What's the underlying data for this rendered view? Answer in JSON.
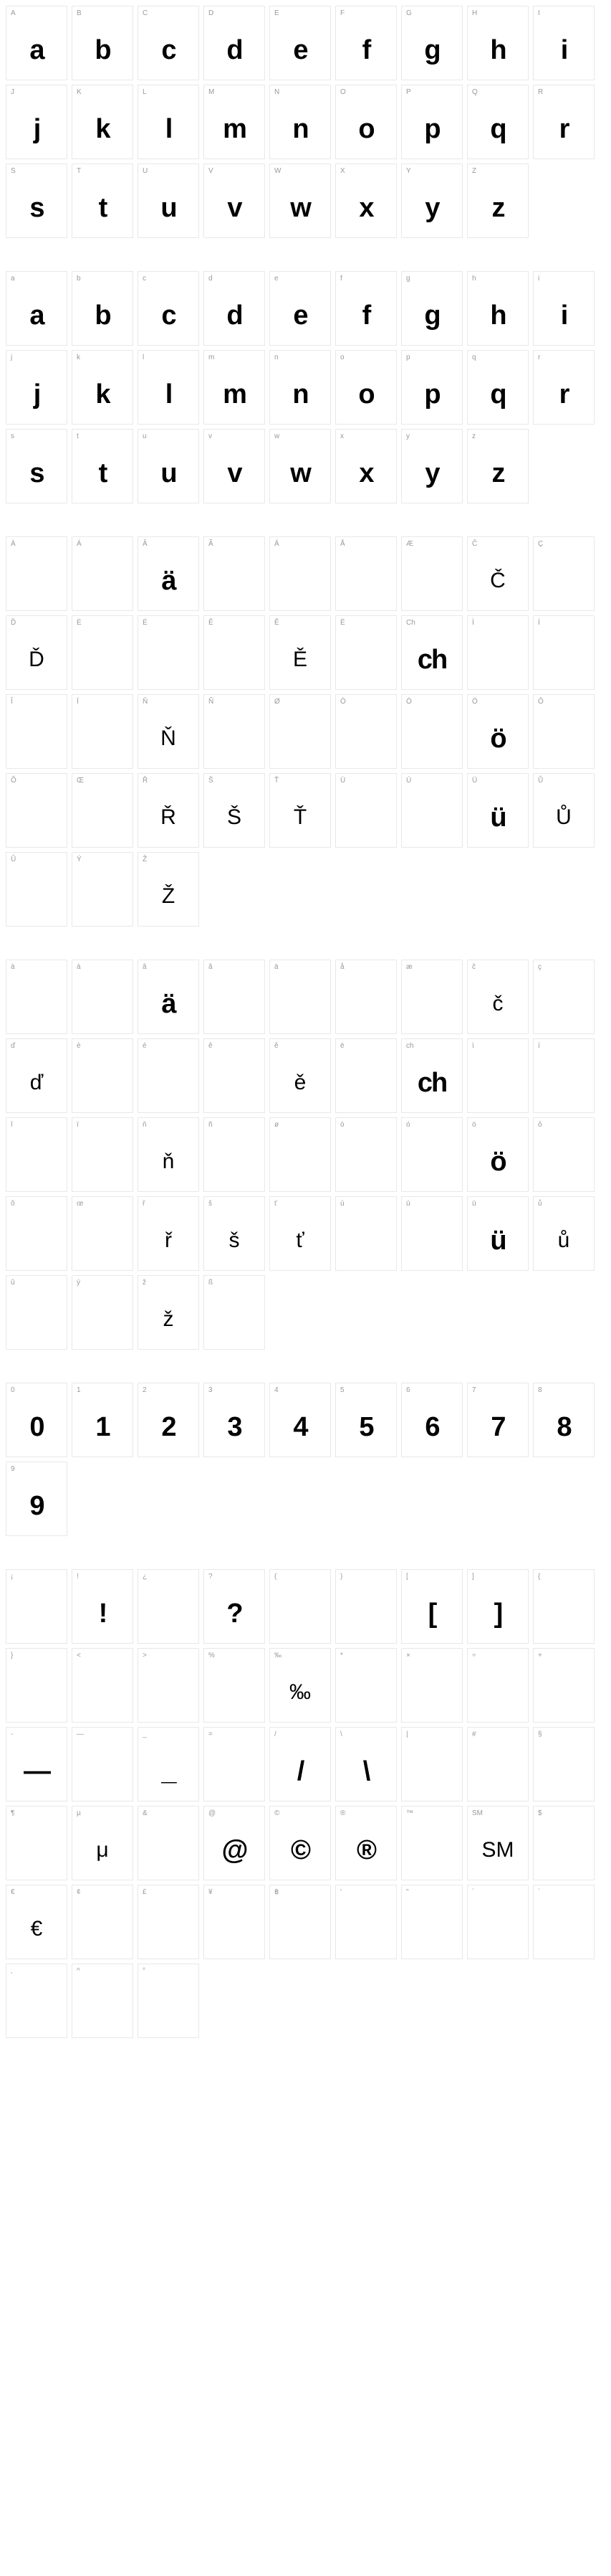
{
  "groups": [
    {
      "cells": [
        {
          "label": "A",
          "glyph": "a",
          "style": "bold"
        },
        {
          "label": "B",
          "glyph": "b",
          "style": "bold"
        },
        {
          "label": "C",
          "glyph": "c",
          "style": "bold"
        },
        {
          "label": "D",
          "glyph": "d",
          "style": "bold"
        },
        {
          "label": "E",
          "glyph": "e",
          "style": "bold"
        },
        {
          "label": "F",
          "glyph": "f",
          "style": "bold"
        },
        {
          "label": "G",
          "glyph": "g",
          "style": "bold"
        },
        {
          "label": "H",
          "glyph": "h",
          "style": "bold"
        },
        {
          "label": "I",
          "glyph": "i",
          "style": "bold"
        },
        {
          "label": "J",
          "glyph": "j",
          "style": "bold"
        },
        {
          "label": "K",
          "glyph": "k",
          "style": "bold"
        },
        {
          "label": "L",
          "glyph": "l",
          "style": "bold"
        },
        {
          "label": "M",
          "glyph": "m",
          "style": "bold"
        },
        {
          "label": "N",
          "glyph": "n",
          "style": "bold"
        },
        {
          "label": "O",
          "glyph": "o",
          "style": "bold"
        },
        {
          "label": "P",
          "glyph": "p",
          "style": "bold"
        },
        {
          "label": "Q",
          "glyph": "q",
          "style": "bold"
        },
        {
          "label": "R",
          "glyph": "r",
          "style": "bold"
        },
        {
          "label": "S",
          "glyph": "s",
          "style": "bold"
        },
        {
          "label": "T",
          "glyph": "t",
          "style": "bold"
        },
        {
          "label": "U",
          "glyph": "u",
          "style": "bold"
        },
        {
          "label": "V",
          "glyph": "v",
          "style": "bold"
        },
        {
          "label": "W",
          "glyph": "w",
          "style": "bold"
        },
        {
          "label": "X",
          "glyph": "x",
          "style": "bold"
        },
        {
          "label": "Y",
          "glyph": "y",
          "style": "bold"
        },
        {
          "label": "Z",
          "glyph": "z",
          "style": "bold"
        }
      ]
    },
    {
      "cells": [
        {
          "label": "a",
          "glyph": "a",
          "style": "bold"
        },
        {
          "label": "b",
          "glyph": "b",
          "style": "bold"
        },
        {
          "label": "c",
          "glyph": "c",
          "style": "bold"
        },
        {
          "label": "d",
          "glyph": "d",
          "style": "bold"
        },
        {
          "label": "e",
          "glyph": "e",
          "style": "bold"
        },
        {
          "label": "f",
          "glyph": "f",
          "style": "bold"
        },
        {
          "label": "g",
          "glyph": "g",
          "style": "bold"
        },
        {
          "label": "h",
          "glyph": "h",
          "style": "bold"
        },
        {
          "label": "i",
          "glyph": "i",
          "style": "bold"
        },
        {
          "label": "j",
          "glyph": "j",
          "style": "bold"
        },
        {
          "label": "k",
          "glyph": "k",
          "style": "bold"
        },
        {
          "label": "l",
          "glyph": "l",
          "style": "bold"
        },
        {
          "label": "m",
          "glyph": "m",
          "style": "bold"
        },
        {
          "label": "n",
          "glyph": "n",
          "style": "bold"
        },
        {
          "label": "o",
          "glyph": "o",
          "style": "bold"
        },
        {
          "label": "p",
          "glyph": "p",
          "style": "bold"
        },
        {
          "label": "q",
          "glyph": "q",
          "style": "bold"
        },
        {
          "label": "r",
          "glyph": "r",
          "style": "bold"
        },
        {
          "label": "s",
          "glyph": "s",
          "style": "bold"
        },
        {
          "label": "t",
          "glyph": "t",
          "style": "bold"
        },
        {
          "label": "u",
          "glyph": "u",
          "style": "bold"
        },
        {
          "label": "v",
          "glyph": "v",
          "style": "bold"
        },
        {
          "label": "w",
          "glyph": "w",
          "style": "bold"
        },
        {
          "label": "x",
          "glyph": "x",
          "style": "bold"
        },
        {
          "label": "y",
          "glyph": "y",
          "style": "bold"
        },
        {
          "label": "z",
          "glyph": "z",
          "style": "bold"
        }
      ]
    },
    {
      "cells": [
        {
          "label": "À",
          "glyph": "",
          "style": "empty"
        },
        {
          "label": "Á",
          "glyph": "",
          "style": "empty"
        },
        {
          "label": "Â",
          "glyph": "ä",
          "style": "bold"
        },
        {
          "label": "Ã",
          "glyph": "",
          "style": "empty"
        },
        {
          "label": "Ä",
          "glyph": "",
          "style": "empty"
        },
        {
          "label": "Å",
          "glyph": "",
          "style": "empty"
        },
        {
          "label": "Æ",
          "glyph": "",
          "style": "empty"
        },
        {
          "label": "Č",
          "glyph": "Č",
          "style": "fb"
        },
        {
          "label": "Ç",
          "glyph": "",
          "style": "empty"
        },
        {
          "label": "Ď",
          "glyph": "Ď",
          "style": "fb"
        },
        {
          "label": "È",
          "glyph": "",
          "style": "empty"
        },
        {
          "label": "É",
          "glyph": "",
          "style": "empty"
        },
        {
          "label": "Ê",
          "glyph": "",
          "style": "empty"
        },
        {
          "label": "Ě",
          "glyph": "Ě",
          "style": "fb"
        },
        {
          "label": "Ë",
          "glyph": "",
          "style": "empty"
        },
        {
          "label": "Ch",
          "glyph": "ch",
          "style": "bold"
        },
        {
          "label": "Ì",
          "glyph": "",
          "style": "empty"
        },
        {
          "label": "Í",
          "glyph": "",
          "style": "empty"
        },
        {
          "label": "Î",
          "glyph": "",
          "style": "empty"
        },
        {
          "label": "Ï",
          "glyph": "",
          "style": "empty"
        },
        {
          "label": "Ň",
          "glyph": "Ň",
          "style": "fb"
        },
        {
          "label": "Ñ",
          "glyph": "",
          "style": "empty"
        },
        {
          "label": "Ø",
          "glyph": "",
          "style": "empty"
        },
        {
          "label": "Ò",
          "glyph": "",
          "style": "empty"
        },
        {
          "label": "Ó",
          "glyph": "",
          "style": "empty"
        },
        {
          "label": "Ö",
          "glyph": "ö",
          "style": "bold"
        },
        {
          "label": "Ô",
          "glyph": "",
          "style": "empty"
        },
        {
          "label": "Õ",
          "glyph": "",
          "style": "empty"
        },
        {
          "label": "Œ",
          "glyph": "",
          "style": "empty"
        },
        {
          "label": "Ř",
          "glyph": "Ř",
          "style": "fb"
        },
        {
          "label": "Š",
          "glyph": "Š",
          "style": "fb"
        },
        {
          "label": "Ť",
          "glyph": "Ť",
          "style": "fb"
        },
        {
          "label": "Ù",
          "glyph": "",
          "style": "empty"
        },
        {
          "label": "Ú",
          "glyph": "",
          "style": "empty"
        },
        {
          "label": "Ü",
          "glyph": "ü",
          "style": "bold"
        },
        {
          "label": "Ů",
          "glyph": "Ů",
          "style": "fb"
        },
        {
          "label": "Û",
          "glyph": "",
          "style": "empty"
        },
        {
          "label": "Ý",
          "glyph": "",
          "style": "empty"
        },
        {
          "label": "Ž",
          "glyph": "Ž",
          "style": "fb"
        }
      ]
    },
    {
      "cells": [
        {
          "label": "à",
          "glyph": "",
          "style": "empty"
        },
        {
          "label": "á",
          "glyph": "",
          "style": "empty"
        },
        {
          "label": "â",
          "glyph": "ä",
          "style": "bold"
        },
        {
          "label": "ã",
          "glyph": "",
          "style": "empty"
        },
        {
          "label": "ä",
          "glyph": "",
          "style": "empty"
        },
        {
          "label": "å",
          "glyph": "",
          "style": "empty"
        },
        {
          "label": "æ",
          "glyph": "",
          "style": "empty"
        },
        {
          "label": "č",
          "glyph": "č",
          "style": "fb"
        },
        {
          "label": "ç",
          "glyph": "",
          "style": "empty"
        },
        {
          "label": "ď",
          "glyph": "ď",
          "style": "fb"
        },
        {
          "label": "è",
          "glyph": "",
          "style": "empty"
        },
        {
          "label": "é",
          "glyph": "",
          "style": "empty"
        },
        {
          "label": "ê",
          "glyph": "",
          "style": "empty"
        },
        {
          "label": "ě",
          "glyph": "ě",
          "style": "fb"
        },
        {
          "label": "ë",
          "glyph": "",
          "style": "empty"
        },
        {
          "label": "ch",
          "glyph": "ch",
          "style": "bold"
        },
        {
          "label": "ì",
          "glyph": "",
          "style": "empty"
        },
        {
          "label": "í",
          "glyph": "",
          "style": "empty"
        },
        {
          "label": "î",
          "glyph": "",
          "style": "empty"
        },
        {
          "label": "ï",
          "glyph": "",
          "style": "empty"
        },
        {
          "label": "ň",
          "glyph": "ň",
          "style": "fb"
        },
        {
          "label": "ñ",
          "glyph": "",
          "style": "empty"
        },
        {
          "label": "ø",
          "glyph": "",
          "style": "empty"
        },
        {
          "label": "ò",
          "glyph": "",
          "style": "empty"
        },
        {
          "label": "ó",
          "glyph": "",
          "style": "empty"
        },
        {
          "label": "ö",
          "glyph": "ö",
          "style": "bold"
        },
        {
          "label": "ô",
          "glyph": "",
          "style": "empty"
        },
        {
          "label": "õ",
          "glyph": "",
          "style": "empty"
        },
        {
          "label": "œ",
          "glyph": "",
          "style": "empty"
        },
        {
          "label": "ř",
          "glyph": "ř",
          "style": "fb"
        },
        {
          "label": "š",
          "glyph": "š",
          "style": "fb"
        },
        {
          "label": "ť",
          "glyph": "ť",
          "style": "fb"
        },
        {
          "label": "ù",
          "glyph": "",
          "style": "empty"
        },
        {
          "label": "ú",
          "glyph": "",
          "style": "empty"
        },
        {
          "label": "ü",
          "glyph": "ü",
          "style": "bold"
        },
        {
          "label": "ů",
          "glyph": "ů",
          "style": "fb"
        },
        {
          "label": "û",
          "glyph": "",
          "style": "empty"
        },
        {
          "label": "ý",
          "glyph": "",
          "style": "empty"
        },
        {
          "label": "ž",
          "glyph": "ž",
          "style": "fb"
        },
        {
          "label": "ß",
          "glyph": "",
          "style": "empty"
        }
      ]
    },
    {
      "cells": [
        {
          "label": "0",
          "glyph": "0",
          "style": "bold"
        },
        {
          "label": "1",
          "glyph": "1",
          "style": "bold"
        },
        {
          "label": "2",
          "glyph": "2",
          "style": "bold"
        },
        {
          "label": "3",
          "glyph": "3",
          "style": "bold"
        },
        {
          "label": "4",
          "glyph": "4",
          "style": "bold"
        },
        {
          "label": "5",
          "glyph": "5",
          "style": "bold"
        },
        {
          "label": "6",
          "glyph": "6",
          "style": "bold"
        },
        {
          "label": "7",
          "glyph": "7",
          "style": "bold"
        },
        {
          "label": "8",
          "glyph": "8",
          "style": "bold"
        },
        {
          "label": "9",
          "glyph": "9",
          "style": "bold"
        }
      ]
    },
    {
      "cells": [
        {
          "label": "¡",
          "glyph": "",
          "style": "empty"
        },
        {
          "label": "!",
          "glyph": "!",
          "style": "bold"
        },
        {
          "label": "¿",
          "glyph": "",
          "style": "empty"
        },
        {
          "label": "?",
          "glyph": "?",
          "style": "bold"
        },
        {
          "label": "(",
          "glyph": "",
          "style": "empty"
        },
        {
          "label": ")",
          "glyph": "",
          "style": "empty"
        },
        {
          "label": "[",
          "glyph": "[",
          "style": "bold"
        },
        {
          "label": "]",
          "glyph": "]",
          "style": "bold"
        },
        {
          "label": "{",
          "glyph": "",
          "style": "empty"
        },
        {
          "label": "}",
          "glyph": "",
          "style": "empty"
        },
        {
          "label": "<",
          "glyph": "",
          "style": "empty"
        },
        {
          "label": ">",
          "glyph": "",
          "style": "empty"
        },
        {
          "label": "%",
          "glyph": "",
          "style": "empty"
        },
        {
          "label": "‰",
          "glyph": "‰",
          "style": "fb"
        },
        {
          "label": "*",
          "glyph": "",
          "style": "empty"
        },
        {
          "label": "×",
          "glyph": "",
          "style": "empty"
        },
        {
          "label": "÷",
          "glyph": "",
          "style": "empty"
        },
        {
          "label": "+",
          "glyph": "",
          "style": "empty"
        },
        {
          "label": "-",
          "glyph": "—",
          "style": "bold"
        },
        {
          "label": "—",
          "glyph": "",
          "style": "empty"
        },
        {
          "label": "_",
          "glyph": "_",
          "style": "bold"
        },
        {
          "label": "=",
          "glyph": "",
          "style": "empty"
        },
        {
          "label": "/",
          "glyph": "/",
          "style": "bold"
        },
        {
          "label": "\\",
          "glyph": "\\",
          "style": "bold"
        },
        {
          "label": "|",
          "glyph": "",
          "style": "empty"
        },
        {
          "label": "#",
          "glyph": "",
          "style": "empty"
        },
        {
          "label": "§",
          "glyph": "",
          "style": "empty"
        },
        {
          "label": "¶",
          "glyph": "",
          "style": "empty"
        },
        {
          "label": "µ",
          "glyph": "μ",
          "style": "fb"
        },
        {
          "label": "&",
          "glyph": "",
          "style": "empty"
        },
        {
          "label": "@",
          "glyph": "@",
          "style": "bold"
        },
        {
          "label": "©",
          "glyph": "©",
          "style": "bold"
        },
        {
          "label": "®",
          "glyph": "®",
          "style": "bold"
        },
        {
          "label": "™",
          "glyph": "",
          "style": "empty"
        },
        {
          "label": "SM",
          "glyph": "SM",
          "style": "fb"
        },
        {
          "label": "$",
          "glyph": "",
          "style": "empty"
        },
        {
          "label": "€",
          "glyph": "€",
          "style": "fb"
        },
        {
          "label": "¢",
          "glyph": "",
          "style": "empty"
        },
        {
          "label": "£",
          "glyph": "",
          "style": "empty"
        },
        {
          "label": "¥",
          "glyph": "",
          "style": "empty"
        },
        {
          "label": "฿",
          "glyph": "",
          "style": "empty"
        },
        {
          "label": "'",
          "glyph": "",
          "style": "empty"
        },
        {
          "label": "\"",
          "glyph": "",
          "style": "empty"
        },
        {
          "label": "´",
          "glyph": "",
          "style": "empty"
        },
        {
          "label": "`",
          "glyph": "",
          "style": "empty"
        },
        {
          "label": "‚",
          "glyph": "",
          "style": "empty"
        },
        {
          "label": "^",
          "glyph": "",
          "style": "empty"
        },
        {
          "label": "°",
          "glyph": "",
          "style": "empty"
        }
      ]
    }
  ]
}
